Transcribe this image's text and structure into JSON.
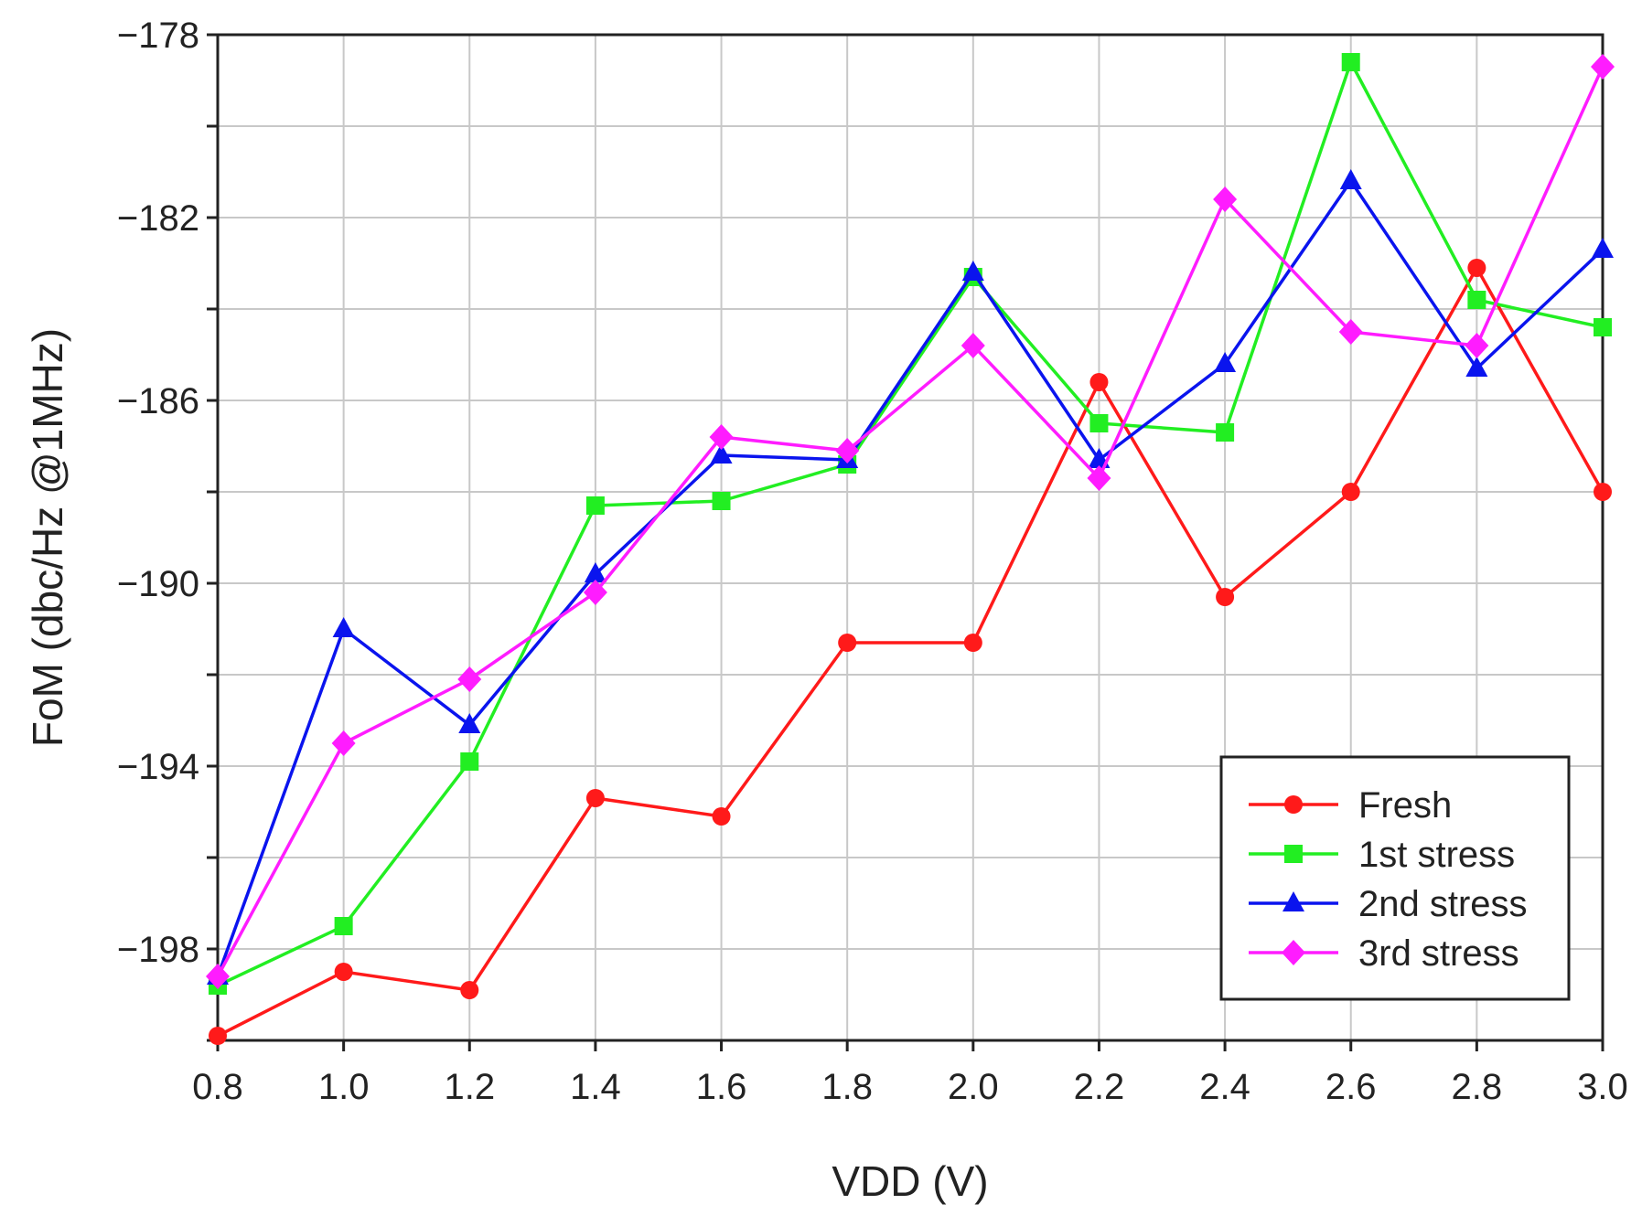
{
  "chart_data": {
    "type": "line",
    "title": "",
    "xlabel": "VDD (V)",
    "ylabel": "FoM (dbc/Hz @1MHz)",
    "x": [
      0.8,
      1.0,
      1.2,
      1.4,
      1.6,
      1.8,
      2.0,
      2.2,
      2.4,
      2.6,
      2.8,
      3.0
    ],
    "x_tick_labels": [
      "0.8",
      "1.0",
      "1.2",
      "1.4",
      "1.6",
      "1.8",
      "2.0",
      "2.2",
      "2.4",
      "2.6",
      "2.8",
      "3.0"
    ],
    "xlim": [
      0.8,
      3.0
    ],
    "ylim": [
      -200,
      -178
    ],
    "y_ticks": [
      -178,
      -182,
      -186,
      -190,
      -194,
      -198
    ],
    "y_tick_labels": [
      "−178",
      "−182",
      "−186",
      "−190",
      "−194",
      "−198"
    ],
    "grid": true,
    "legend_position": "bottom-right",
    "series": [
      {
        "name": "Fresh",
        "color": "#ff1a1a",
        "marker": "circle",
        "values": [
          -199.9,
          -198.5,
          -198.9,
          -194.7,
          -195.1,
          -191.3,
          -191.3,
          -185.6,
          -190.3,
          -188.0,
          -183.1,
          -188.0
        ]
      },
      {
        "name": "1st stress",
        "color": "#22ee22",
        "marker": "square",
        "values": [
          -198.8,
          -197.5,
          -193.9,
          -188.3,
          -188.2,
          -187.4,
          -183.3,
          -186.5,
          -186.7,
          -178.6,
          -183.8,
          -184.4
        ]
      },
      {
        "name": "2nd stress",
        "color": "#0a14ee",
        "marker": "triangle",
        "values": [
          -198.6,
          -191.0,
          -193.1,
          -189.8,
          -187.2,
          -187.3,
          -183.2,
          -187.3,
          -185.2,
          -181.2,
          -185.3,
          -182.7
        ]
      },
      {
        "name": "3rd stress",
        "color": "#ff1cff",
        "marker": "diamond",
        "values": [
          -198.6,
          -193.5,
          -192.1,
          -190.2,
          -186.8,
          -187.1,
          -184.8,
          -187.7,
          -181.6,
          -184.5,
          -184.8,
          -178.7
        ]
      }
    ]
  }
}
